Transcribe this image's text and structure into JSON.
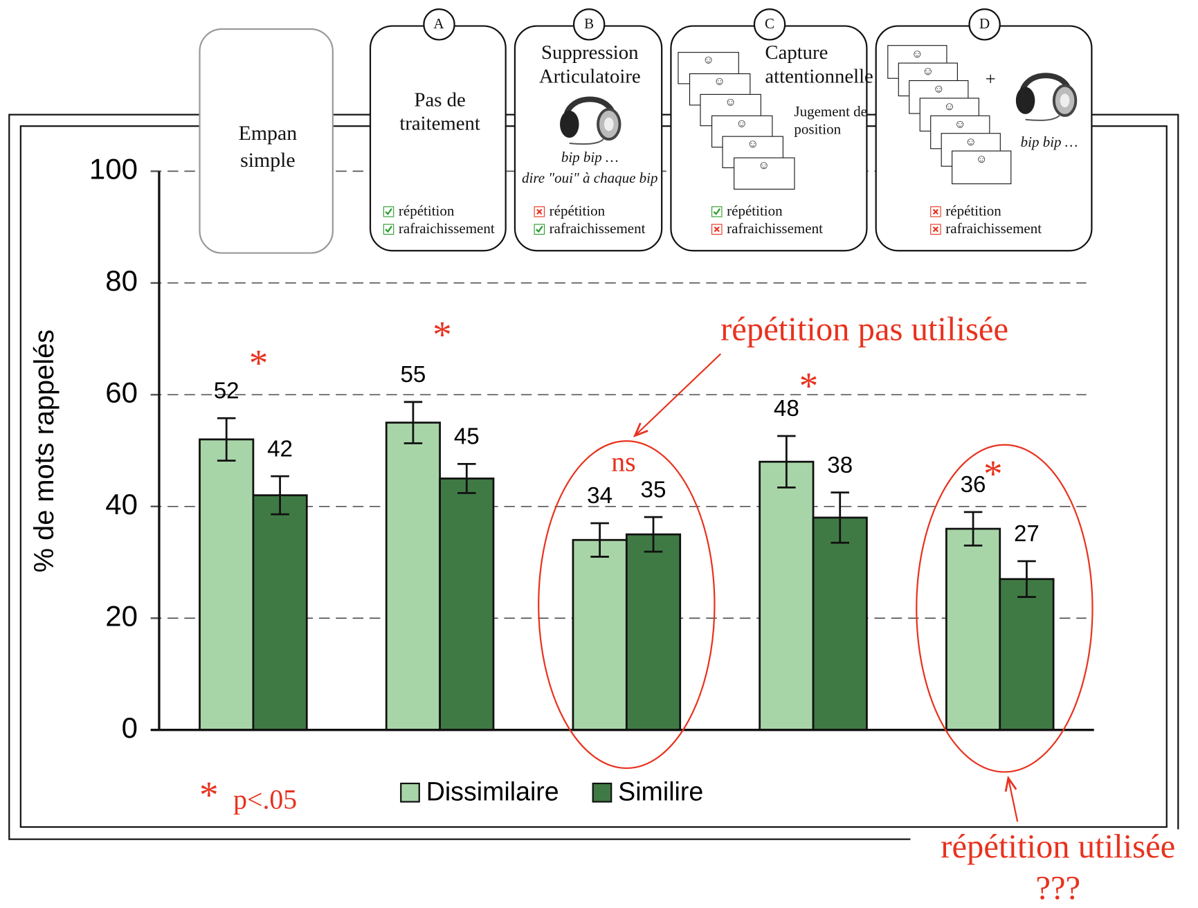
{
  "chart_data": {
    "type": "bar",
    "y_label": "% de mots rappelés",
    "categories": [
      "Empan simple",
      "Pas de traitement",
      "Suppression Articulatoire",
      "Capture attentionnelle",
      null
    ],
    "series": [
      {
        "name": "Dissimilaire",
        "color": "#a8d5a8",
        "values": [
          52,
          55,
          34,
          48,
          36
        ],
        "errors": [
          3.8,
          3.7,
          3,
          4.6,
          3
        ]
      },
      {
        "name": "Similire",
        "color": "#3f7a44",
        "values": [
          42,
          45,
          35,
          38,
          27
        ],
        "errors": [
          3.4,
          2.6,
          3.1,
          4.5,
          3.2
        ]
      }
    ],
    "ylim": [
      0,
      100
    ],
    "yticks": [
      0,
      20,
      40,
      60,
      80,
      100
    ],
    "grid": true,
    "significance": [
      "*",
      "*",
      "ns",
      "*",
      "*"
    ],
    "note_symbol": "*",
    "note": "p<.05",
    "annotation_top": "répétition pas utilisée",
    "annotation_bottom": [
      "répétition utilisée",
      "???"
    ],
    "panels": [
      {
        "letter": "A",
        "notes": [],
        "checks": [
          {
            "label": "répétition",
            "ok": true
          },
          {
            "label": "rafraichissement",
            "ok": true
          }
        ]
      },
      {
        "letter": "B",
        "notes": [
          "bip bip …",
          "dire \"oui\" à chaque bip"
        ],
        "checks": [
          {
            "label": "répétition",
            "ok": false
          },
          {
            "label": "rafraichissement",
            "ok": true
          }
        ]
      },
      {
        "letter": "C",
        "notes": [
          "Jugement de position"
        ],
        "checks": [
          {
            "label": "répétition",
            "ok": true
          },
          {
            "label": "rafraichissement",
            "ok": false
          }
        ]
      },
      {
        "letter": "D",
        "notes": [
          "+",
          "bip bip …"
        ],
        "checks": [
          {
            "label": "répétition",
            "ok": false
          },
          {
            "label": "rafraichissement",
            "ok": false
          }
        ]
      }
    ]
  }
}
